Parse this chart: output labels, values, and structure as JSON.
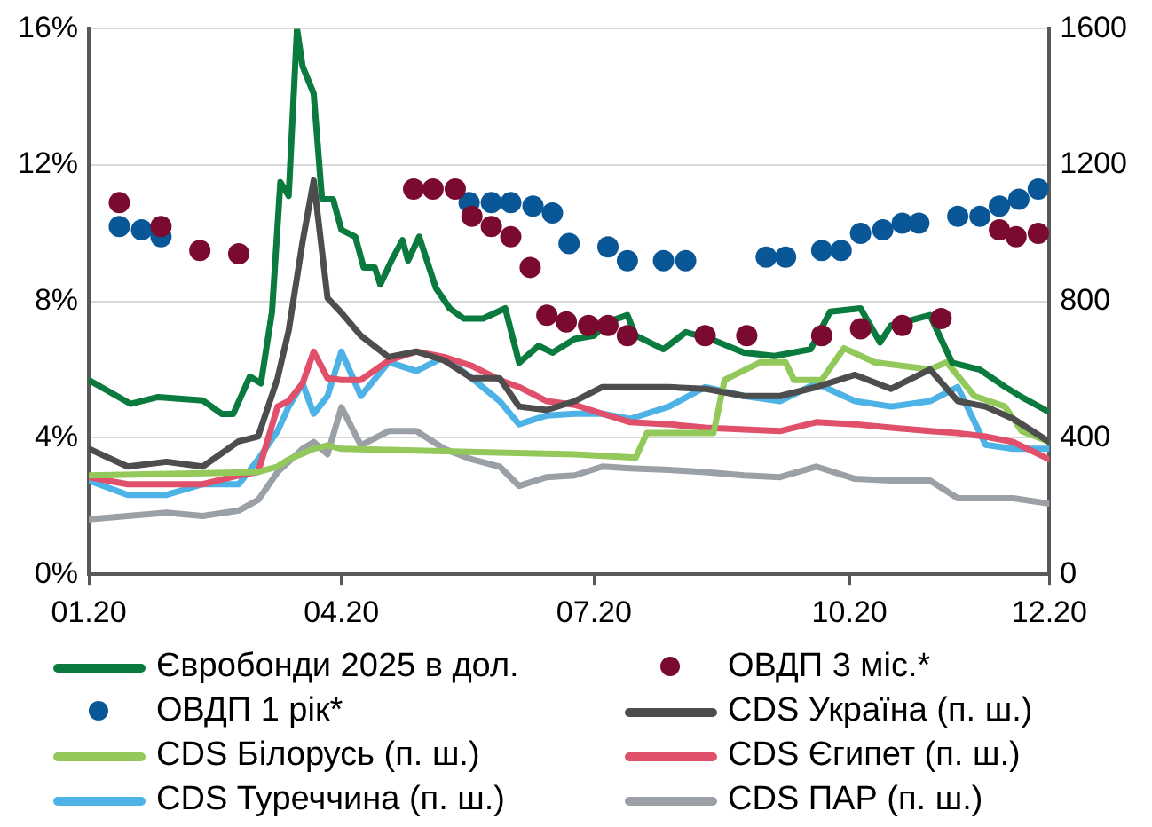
{
  "chart_data": {
    "type": "line",
    "grid": "y",
    "legend": "bottom",
    "xlim": [
      "2020-01-01",
      "2020-12-12"
    ],
    "xticks": [
      {
        "value": "2020-01-01",
        "label": "01.20"
      },
      {
        "value": "2020-04-01",
        "label": "04.20"
      },
      {
        "value": "2020-07-01",
        "label": "07.20"
      },
      {
        "value": "2020-10-01",
        "label": "10.20"
      },
      {
        "value": "2020-12-12",
        "label": "12.20"
      }
    ],
    "ylim": [
      0,
      16
    ],
    "yticks": [
      {
        "value": 0,
        "label": "0%"
      },
      {
        "value": 4,
        "label": "4%"
      },
      {
        "value": 8,
        "label": "8%"
      },
      {
        "value": 12,
        "label": "12%"
      },
      {
        "value": 16,
        "label": "16%"
      }
    ],
    "y2lim": [
      0,
      1600
    ],
    "y2ticks": [
      0,
      400,
      800,
      1200,
      1600
    ],
    "x": [
      "2020-01-01",
      "2020-01-15",
      "2020-01-29",
      "2020-02-11",
      "2020-02-24",
      "2020-03-02",
      "2020-03-09",
      "2020-03-13",
      "2020-03-18",
      "2020-03-22",
      "2020-03-27",
      "2020-04-01",
      "2020-04-08",
      "2020-04-18",
      "2020-04-28",
      "2020-05-08",
      "2020-05-18",
      "2020-05-28",
      "2020-06-04",
      "2020-06-14",
      "2020-06-24",
      "2020-07-04",
      "2020-07-14",
      "2020-07-28",
      "2020-08-10",
      "2020-08-24",
      "2020-09-06",
      "2020-09-19",
      "2020-10-03",
      "2020-10-16",
      "2020-10-30",
      "2020-11-09",
      "2020-11-19",
      "2020-11-29",
      "2020-12-12"
    ],
    "series": [
      {
        "name": "Євробонди 2025 в дол.",
        "color": "#0b7a3e",
        "x": [
          "2020-01-01",
          "2020-01-16",
          "2020-01-26",
          "2020-02-11",
          "2020-02-18",
          "2020-02-22",
          "2020-02-28",
          "2020-03-03",
          "2020-03-07",
          "2020-03-10",
          "2020-03-13",
          "2020-03-16",
          "2020-03-18",
          "2020-03-22",
          "2020-03-25",
          "2020-03-29",
          "2020-04-01",
          "2020-04-06",
          "2020-04-09",
          "2020-04-13",
          "2020-04-15",
          "2020-04-19",
          "2020-04-23",
          "2020-04-25",
          "2020-04-29",
          "2020-05-05",
          "2020-05-10",
          "2020-05-15",
          "2020-05-22",
          "2020-05-30",
          "2020-06-04",
          "2020-06-11",
          "2020-06-16",
          "2020-06-24",
          "2020-07-01",
          "2020-07-06",
          "2020-07-13",
          "2020-07-16",
          "2020-07-26",
          "2020-08-03",
          "2020-08-12",
          "2020-08-24",
          "2020-09-04",
          "2020-09-17",
          "2020-09-24",
          "2020-10-05",
          "2020-10-12",
          "2020-10-16",
          "2020-10-30",
          "2020-11-07",
          "2020-11-17",
          "2020-11-26",
          "2020-12-02",
          "2020-12-11"
        ],
        "values": [
          5.7,
          5.0,
          5.2,
          5.1,
          4.7,
          4.7,
          5.8,
          5.6,
          7.7,
          11.5,
          11.1,
          16.0,
          14.9,
          14.1,
          11.0,
          11.0,
          10.1,
          9.9,
          9.0,
          9.0,
          8.5,
          9.2,
          9.8,
          9.2,
          9.9,
          8.4,
          7.8,
          7.5,
          7.5,
          7.8,
          6.2,
          6.7,
          6.5,
          6.9,
          7.0,
          7.4,
          7.6,
          7.0,
          6.6,
          7.1,
          6.9,
          6.5,
          6.4,
          6.6,
          7.7,
          7.8,
          6.8,
          7.3,
          7.6,
          6.2,
          6.0,
          5.5,
          5.2,
          4.8
        ]
      },
      {
        "name": "ОВДП 3 міс.*",
        "type": "scatter",
        "color": "#7a0a30",
        "x": [
          "2020-01-12",
          "2020-01-27",
          "2020-02-10",
          "2020-02-24",
          "2020-04-27",
          "2020-05-04",
          "2020-05-12",
          "2020-05-18",
          "2020-05-25",
          "2020-06-01",
          "2020-06-08",
          "2020-06-14",
          "2020-06-21",
          "2020-06-29",
          "2020-07-06",
          "2020-07-13",
          "2020-08-10",
          "2020-08-25",
          "2020-09-21",
          "2020-10-05",
          "2020-10-20",
          "2020-11-03",
          "2020-11-24",
          "2020-11-30",
          "2020-12-08"
        ],
        "values": [
          10.9,
          10.2,
          9.5,
          9.4,
          11.3,
          11.3,
          11.3,
          10.5,
          10.2,
          9.9,
          9.0,
          7.6,
          7.4,
          7.3,
          7.3,
          7.0,
          7.0,
          7.0,
          7.0,
          7.2,
          7.3,
          7.5,
          10.1,
          9.9,
          10.0
        ]
      },
      {
        "name": "ОВДП 1 рік*",
        "type": "scatter",
        "color": "#0a5797",
        "x": [
          "2020-01-12",
          "2020-01-20",
          "2020-01-27",
          "2020-05-17",
          "2020-05-25",
          "2020-06-01",
          "2020-06-09",
          "2020-06-16",
          "2020-06-22",
          "2020-07-06",
          "2020-07-13",
          "2020-07-26",
          "2020-08-03",
          "2020-09-01",
          "2020-09-08",
          "2020-09-21",
          "2020-09-28",
          "2020-10-05",
          "2020-10-13",
          "2020-10-20",
          "2020-10-26",
          "2020-11-09",
          "2020-11-17",
          "2020-11-24",
          "2020-12-01",
          "2020-12-08"
        ],
        "values": [
          10.2,
          10.1,
          9.9,
          10.9,
          10.9,
          10.9,
          10.8,
          10.6,
          9.7,
          9.6,
          9.2,
          9.2,
          9.2,
          9.3,
          9.3,
          9.5,
          9.5,
          10.0,
          10.1,
          10.3,
          10.3,
          10.5,
          10.5,
          10.8,
          11.0,
          11.3
        ]
      },
      {
        "name": "CDS Україна (п. ш.)",
        "axis": "y2",
        "color": "#4d4d4d",
        "values": [
          368,
          316,
          330,
          316,
          390,
          404,
          575,
          715,
          975,
          1155,
          810,
          767,
          700,
          637,
          653,
          627,
          575,
          575,
          492,
          482,
          508,
          549,
          549,
          549,
          544,
          523,
          523,
          549,
          585,
          544,
          601,
          508,
          492,
          456,
          388
        ]
      },
      {
        "name": "CDS Білорусь (п. ш.)",
        "axis": "y2",
        "color": "#92c95a",
        "x": [
          "2020-01-01",
          "2020-03-02",
          "2020-03-09",
          "2020-03-13",
          "2020-03-22",
          "2020-03-27",
          "2020-04-01",
          "2020-06-24",
          "2020-07-16",
          "2020-07-20",
          "2020-08-13",
          "2020-08-17",
          "2020-08-30",
          "2020-09-08",
          "2020-09-11",
          "2020-09-21",
          "2020-09-29",
          "2020-10-10",
          "2020-10-30",
          "2020-11-05",
          "2020-11-15",
          "2020-11-26",
          "2020-12-02",
          "2020-12-12"
        ],
        "values": [
          290,
          300,
          316,
          337,
          368,
          378,
          368,
          352,
          342,
          414,
          414,
          570,
          622,
          622,
          570,
          570,
          663,
          622,
          601,
          622,
          523,
          492,
          420,
          388
        ]
      },
      {
        "name": "CDS Єгипет (п. ш.)",
        "axis": "y2",
        "color": "#e0506a",
        "values": [
          285,
          264,
          264,
          264,
          290,
          300,
          492,
          508,
          560,
          653,
          575,
          570,
          570,
          627,
          653,
          637,
          611,
          570,
          549,
          508,
          497,
          471,
          446,
          440,
          430,
          425,
          420,
          446,
          440,
          430,
          420,
          414,
          404,
          388,
          337
        ]
      },
      {
        "name": "CDS Туреччина (п. ш.)",
        "axis": "y2",
        "color": "#4db2e6",
        "values": [
          275,
          233,
          233,
          264,
          264,
          337,
          420,
          492,
          560,
          471,
          523,
          653,
          523,
          622,
          596,
          637,
          575,
          508,
          440,
          466,
          471,
          471,
          456,
          492,
          549,
          523,
          508,
          560,
          508,
          492,
          508,
          549,
          380,
          368,
          368
        ]
      },
      {
        "name": "CDS ПАР (п. ш.)",
        "axis": "y2",
        "color": "#9aa0a5",
        "values": [
          161,
          171,
          181,
          171,
          187,
          218,
          300,
          330,
          368,
          388,
          352,
          490,
          378,
          420,
          420,
          368,
          337,
          316,
          259,
          285,
          290,
          316,
          311,
          306,
          300,
          290,
          285,
          316,
          280,
          275,
          275,
          223,
          223,
          223,
          207
        ]
      }
    ]
  }
}
